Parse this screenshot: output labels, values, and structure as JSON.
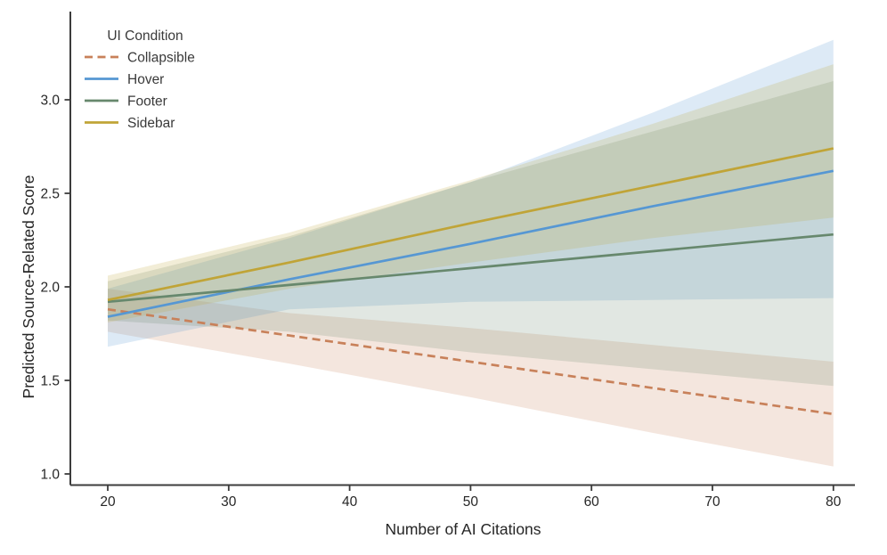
{
  "figure": {
    "background": "#ffffff",
    "axis_color": "#3c3c3c",
    "text_color": "#262626"
  },
  "chart_data": {
    "type": "line",
    "title": "",
    "xlabel": "Number of AI Citations",
    "ylabel": "Predicted Source-Related Score",
    "x_ticks": [
      20,
      30,
      40,
      50,
      60,
      70,
      80
    ],
    "y_ticks": [
      "1.0",
      "1.5",
      "2.0",
      "2.5",
      "3.0"
    ],
    "xlim": [
      17,
      82
    ],
    "ylim": [
      0.94,
      3.47
    ],
    "grid": false,
    "legend": {
      "title": "UI Condition",
      "position": "upper-left"
    },
    "x": [
      20,
      35,
      50,
      65,
      80
    ],
    "series": [
      {
        "name": "Collapsible",
        "color": "#c8815a",
        "dashed": true,
        "values": [
          1.88,
          1.74,
          1.6,
          1.46,
          1.32
        ],
        "ci_upper": [
          1.99,
          1.86,
          1.78,
          1.69,
          1.6
        ],
        "ci_lower": [
          1.76,
          1.59,
          1.41,
          1.22,
          1.04
        ]
      },
      {
        "name": "Hover",
        "color": "#5697d3",
        "dashed": false,
        "values": [
          1.84,
          2.04,
          2.23,
          2.43,
          2.62
        ],
        "ci_upper": [
          1.99,
          2.26,
          2.56,
          2.93,
          3.32
        ],
        "ci_lower": [
          1.68,
          1.88,
          1.92,
          1.93,
          1.94
        ]
      },
      {
        "name": "Footer",
        "color": "#67886d",
        "dashed": false,
        "values": [
          1.92,
          2.01,
          2.1,
          2.19,
          2.28
        ],
        "ci_upper": [
          2.03,
          2.27,
          2.56,
          2.83,
          3.1
        ],
        "ci_lower": [
          1.82,
          1.76,
          1.65,
          1.56,
          1.47
        ]
      },
      {
        "name": "Sidebar",
        "color": "#c0a437",
        "dashed": false,
        "values": [
          1.93,
          2.13,
          2.34,
          2.54,
          2.74
        ],
        "ci_upper": [
          2.06,
          2.29,
          2.57,
          2.87,
          3.19
        ],
        "ci_lower": [
          1.81,
          1.99,
          2.13,
          2.26,
          2.37
        ]
      }
    ],
    "band_opacity": 0.2
  }
}
